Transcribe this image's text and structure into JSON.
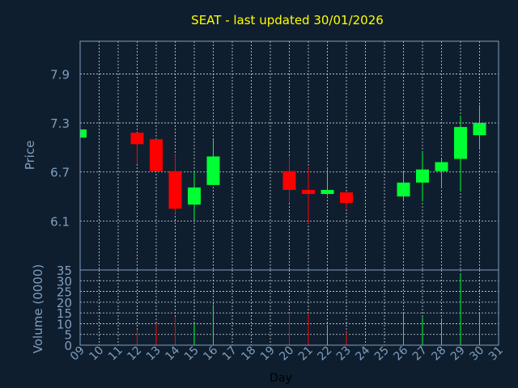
{
  "chart_data": {
    "type": "candlestick",
    "title": "SEAT - last updated 30/01/2026",
    "xlabel": "Day",
    "ylabel": "Price",
    "volume_label": "Volume (0000)",
    "x_ticks": [
      "09",
      "10",
      "11",
      "12",
      "13",
      "14",
      "15",
      "16",
      "17",
      "18",
      "19",
      "20",
      "21",
      "22",
      "23",
      "24",
      "25",
      "26",
      "27",
      "28",
      "29",
      "30",
      "31"
    ],
    "price_ticks": [
      6.1,
      6.7,
      7.3,
      7.9
    ],
    "price_tick_labels": [
      "6.1",
      "6.7",
      "7.3",
      "7.9"
    ],
    "price_ylim": [
      5.5,
      8.3
    ],
    "volume_ticks": [
      0,
      5,
      10,
      15,
      20,
      25,
      30,
      35
    ],
    "volume_tick_labels": [
      "0",
      "5",
      "10",
      "15",
      "20",
      "25",
      "30",
      "35"
    ],
    "volume_ylim": [
      0,
      35
    ],
    "up_color": "#00ff33",
    "down_color": "#ff0000",
    "candles": [
      {
        "day": "09",
        "open": 7.12,
        "close": 7.22,
        "high": 7.22,
        "low": 7.12,
        "volume": 0
      },
      {
        "day": "12",
        "open": 7.18,
        "close": 7.04,
        "high": 7.18,
        "low": 6.8,
        "volume": 7
      },
      {
        "day": "13",
        "open": 7.1,
        "close": 6.71,
        "high": 7.1,
        "low": 6.71,
        "volume": 10
      },
      {
        "day": "14",
        "open": 6.71,
        "close": 6.25,
        "high": 6.91,
        "low": 6.19,
        "volume": 13
      },
      {
        "day": "15",
        "open": 6.3,
        "close": 6.51,
        "high": 6.71,
        "low": 6.12,
        "volume": 10
      },
      {
        "day": "16",
        "open": 6.54,
        "close": 6.89,
        "high": 7.1,
        "low": 6.54,
        "volume": 19
      },
      {
        "day": "20",
        "open": 6.71,
        "close": 6.48,
        "high": 6.89,
        "low": 6.32,
        "volume": 15
      },
      {
        "day": "21",
        "open": 6.48,
        "close": 6.43,
        "high": 6.75,
        "low": 6.07,
        "volume": 15
      },
      {
        "day": "22",
        "open": 6.43,
        "close": 6.48,
        "high": 6.73,
        "low": 6.41,
        "volume": 9
      },
      {
        "day": "23",
        "open": 6.45,
        "close": 6.32,
        "high": 6.45,
        "low": 6.25,
        "volume": 6
      },
      {
        "day": "26",
        "open": 6.4,
        "close": 6.57,
        "high": 6.71,
        "low": 6.34,
        "volume": 15
      },
      {
        "day": "27",
        "open": 6.57,
        "close": 6.73,
        "high": 6.94,
        "low": 6.34,
        "volume": 13
      },
      {
        "day": "28",
        "open": 6.71,
        "close": 6.82,
        "high": 6.87,
        "low": 6.5,
        "volume": 12
      },
      {
        "day": "29",
        "open": 6.86,
        "close": 7.25,
        "high": 7.39,
        "low": 6.47,
        "volume": 33
      },
      {
        "day": "30",
        "open": 7.15,
        "close": 7.3,
        "high": 7.52,
        "low": 6.97,
        "volume": 15
      }
    ]
  }
}
